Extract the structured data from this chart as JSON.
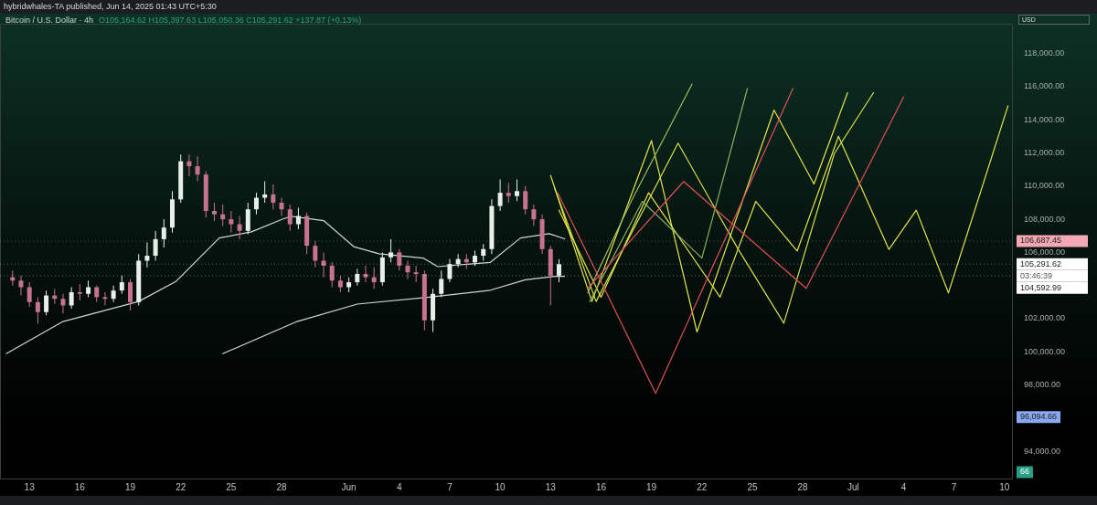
{
  "chart_data": {
    "type": "candlestick",
    "title": "Bitcoin / U.S. Dollar · 4h",
    "subtitle": "hybridwhales-TA published, Jun 14, 2025 01:43 UTC+5:30",
    "annotations": [
      "O105,164.62 H105,397.63 L105,050.36 C105,291.62 +137.87 (+0.13%)",
      "USD",
      "03:46:39",
      "96,094.66",
      "66"
    ],
    "ref_lines": [
      {
        "axis": "y",
        "value": 106687.45,
        "label": "106,687.45",
        "color": "#f4a7b5",
        "line_style": "dotted"
      },
      {
        "axis": "y",
        "value": 105291.62,
        "label": "105,291.62",
        "color": "#ffffff",
        "line_style": "dotted"
      },
      {
        "axis": "y",
        "value": 104592.99,
        "label": "104,592.99",
        "color": "#ffffff",
        "line_style": "dotted"
      }
    ],
    "x": [
      "2025-05-12T00:00",
      "2025-05-12T12:00",
      "2025-05-13T00:00",
      "2025-05-13T12:00",
      "2025-05-14T00:00",
      "2025-05-14T12:00",
      "2025-05-15T00:00",
      "2025-05-15T12:00",
      "2025-05-16T00:00",
      "2025-05-16T12:00",
      "2025-05-17T00:00",
      "2025-05-17T12:00",
      "2025-05-18T00:00",
      "2025-05-18T12:00",
      "2025-05-19T00:00",
      "2025-05-19T12:00",
      "2025-05-20T00:00",
      "2025-05-20T12:00",
      "2025-05-21T00:00",
      "2025-05-21T12:00",
      "2025-05-22T00:00",
      "2025-05-22T12:00",
      "2025-05-23T00:00",
      "2025-05-23T12:00",
      "2025-05-24T00:00",
      "2025-05-24T12:00",
      "2025-05-25T00:00",
      "2025-05-25T12:00",
      "2025-05-26T00:00",
      "2025-05-26T12:00",
      "2025-05-27T00:00",
      "2025-05-27T12:00",
      "2025-05-28T00:00",
      "2025-05-28T12:00",
      "2025-05-29T00:00",
      "2025-05-29T12:00",
      "2025-05-30T00:00",
      "2025-05-30T12:00",
      "2025-05-31T00:00",
      "2025-05-31T12:00",
      "2025-06-01T00:00",
      "2025-06-01T12:00",
      "2025-06-02T00:00",
      "2025-06-02T12:00",
      "2025-06-03T00:00",
      "2025-06-03T12:00",
      "2025-06-04T00:00",
      "2025-06-04T12:00",
      "2025-06-05T00:00",
      "2025-06-05T12:00",
      "2025-06-06T00:00",
      "2025-06-06T12:00",
      "2025-06-07T00:00",
      "2025-06-07T12:00",
      "2025-06-08T00:00",
      "2025-06-08T12:00",
      "2025-06-09T00:00",
      "2025-06-09T12:00",
      "2025-06-10T00:00",
      "2025-06-10T12:00",
      "2025-06-11T00:00",
      "2025-06-11T12:00",
      "2025-06-12T00:00",
      "2025-06-12T12:00",
      "2025-06-13T00:00",
      "2025-06-13T12:00"
    ],
    "ohlc": [
      [
        104500,
        104900,
        104000,
        104300
      ],
      [
        104300,
        104600,
        103400,
        103900
      ],
      [
        103900,
        104200,
        102700,
        103000
      ],
      [
        103000,
        103300,
        101700,
        102400
      ],
      [
        102400,
        103700,
        102200,
        103400
      ],
      [
        103400,
        103800,
        102900,
        103200
      ],
      [
        103200,
        103500,
        102300,
        102800
      ],
      [
        102800,
        103900,
        102600,
        103600
      ],
      [
        103600,
        104100,
        103100,
        103500
      ],
      [
        103500,
        104300,
        103300,
        103900
      ],
      [
        103900,
        104000,
        103000,
        103300
      ],
      [
        103300,
        103600,
        102800,
        103200
      ],
      [
        103200,
        104000,
        103000,
        103700
      ],
      [
        103700,
        104600,
        103500,
        104200
      ],
      [
        104200,
        104400,
        102500,
        103000
      ],
      [
        103000,
        105900,
        102800,
        105500
      ],
      [
        105500,
        106600,
        105100,
        105800
      ],
      [
        105800,
        107300,
        105500,
        106800
      ],
      [
        106800,
        108000,
        106300,
        107500
      ],
      [
        107500,
        109700,
        107200,
        109200
      ],
      [
        109200,
        111900,
        109000,
        111500
      ],
      [
        111500,
        111900,
        110600,
        111200
      ],
      [
        111200,
        111800,
        110300,
        110700
      ],
      [
        110700,
        110900,
        108100,
        108500
      ],
      [
        108500,
        109000,
        107900,
        108300
      ],
      [
        108300,
        108900,
        107600,
        108000
      ],
      [
        108000,
        108500,
        107200,
        107700
      ],
      [
        107700,
        108200,
        106800,
        107300
      ],
      [
        107300,
        109000,
        107100,
        108600
      ],
      [
        108600,
        109600,
        108300,
        109300
      ],
      [
        109300,
        110300,
        109000,
        109500
      ],
      [
        109500,
        110100,
        108600,
        109000
      ],
      [
        109000,
        109300,
        108200,
        108600
      ],
      [
        108600,
        108900,
        107300,
        107700
      ],
      [
        107700,
        108700,
        107400,
        108200
      ],
      [
        108200,
        108400,
        105900,
        106400
      ],
      [
        106400,
        106700,
        105100,
        105500
      ],
      [
        105500,
        106000,
        104500,
        105200
      ],
      [
        105200,
        105400,
        103900,
        104300
      ],
      [
        104300,
        104600,
        103600,
        103900
      ],
      [
        103900,
        104500,
        103600,
        104200
      ],
      [
        104200,
        105000,
        104000,
        104700
      ],
      [
        104700,
        105200,
        104200,
        104500
      ],
      [
        104500,
        105100,
        103800,
        104200
      ],
      [
        104200,
        106000,
        104000,
        105700
      ],
      [
        105700,
        106800,
        105400,
        106000
      ],
      [
        106000,
        106200,
        104900,
        105200
      ],
      [
        105200,
        105500,
        104400,
        104800
      ],
      [
        104800,
        105200,
        104200,
        104700
      ],
      [
        104700,
        104900,
        101300,
        101900
      ],
      [
        101900,
        103800,
        101200,
        103500
      ],
      [
        103500,
        104900,
        103300,
        104400
      ],
      [
        104400,
        105600,
        104200,
        105300
      ],
      [
        105300,
        105900,
        105100,
        105600
      ],
      [
        105600,
        105900,
        105000,
        105400
      ],
      [
        105400,
        106100,
        105200,
        105800
      ],
      [
        105800,
        106500,
        105500,
        106200
      ],
      [
        106200,
        109200,
        105900,
        108800
      ],
      [
        108800,
        110400,
        108500,
        109600
      ],
      [
        109600,
        110200,
        109000,
        109400
      ],
      [
        109400,
        110400,
        109100,
        109700
      ],
      [
        109700,
        110000,
        108300,
        108600
      ],
      [
        108600,
        108900,
        107600,
        108000
      ],
      [
        108000,
        108300,
        105900,
        106200
      ],
      [
        106200,
        106400,
        102800,
        104600
      ],
      [
        104600,
        105600,
        104200,
        105290
      ]
    ],
    "colors": [
      "#c8738d",
      "#c8738d",
      "#c8738d",
      "#c8738d",
      "#e8efe9",
      "#c8738d",
      "#c8738d",
      "#e8efe9",
      "#c8738d",
      "#e8efe9",
      "#c8738d",
      "#c8738d",
      "#e8efe9",
      "#e8efe9",
      "#c8738d",
      "#e8efe9",
      "#e8efe9",
      "#e8efe9",
      "#e8efe9",
      "#e8efe9",
      "#e8efe9",
      "#c8738d",
      "#c8738d",
      "#c8738d",
      "#c8738d",
      "#c8738d",
      "#c8738d",
      "#c8738d",
      "#e8efe9",
      "#e8efe9",
      "#e8efe9",
      "#c8738d",
      "#c8738d",
      "#c8738d",
      "#e8efe9",
      "#c8738d",
      "#c8738d",
      "#c8738d",
      "#c8738d",
      "#c8738d",
      "#e8efe9",
      "#e8efe9",
      "#c8738d",
      "#c8738d",
      "#e8efe9",
      "#e8efe9",
      "#c8738d",
      "#c8738d",
      "#c8738d",
      "#c8738d",
      "#e8efe9",
      "#e8efe9",
      "#e8efe9",
      "#e8efe9",
      "#c8738d",
      "#e8efe9",
      "#e8efe9",
      "#e8efe9",
      "#e8efe9",
      "#c8738d",
      "#e8efe9",
      "#c8738d",
      "#c8738d",
      "#c8738d",
      "#c8738d",
      "#e8efe9"
    ],
    "series": [
      {
        "type": "line",
        "color": "#cfd8d2",
        "x": [
          "2025-05-11T15:00",
          "2025-05-15T00:00",
          "2025-05-19T12:00",
          "2025-05-21T17:00",
          "2025-05-24T07:00",
          "2025-05-26T05:00",
          "2025-05-28T02:00",
          "2025-05-28T14:00",
          "2025-05-30T12:00",
          "2025-06-01T07:00",
          "2025-06-02T19:00",
          "2025-06-05T10:00",
          "2025-06-06T07:00",
          "2025-06-09T10:00",
          "2025-06-11T05:00",
          "2025-06-12T22:00",
          "2025-06-13T20:00"
        ],
        "values": [
          99890,
          101830,
          103040,
          104240,
          106870,
          107240,
          108020,
          108180,
          107920,
          106350,
          105920,
          105660,
          105140,
          105400,
          106870,
          107130,
          106820
        ]
      },
      {
        "type": "line",
        "color": "#cfd8d2",
        "x": [
          "2025-05-24T12:00",
          "2025-05-28T22:00",
          "2025-06-01T12:00",
          "2025-06-05T19:00",
          "2025-06-09T10:00",
          "2025-06-11T12:00",
          "2025-06-13T06:00",
          "2025-06-13T20:00"
        ],
        "values": [
          99890,
          101830,
          102880,
          103300,
          103720,
          104350,
          104560,
          104560
        ]
      },
      {
        "type": "line",
        "color": "#e0505a",
        "x": [
          "2025-06-13T10:00",
          "2025-06-19T06:00",
          "2025-06-27T10:00"
        ],
        "values": [
          109600,
          97500,
          115900
        ]
      },
      {
        "type": "line",
        "color": "#e0505a",
        "x": [
          "2025-06-15T05:00",
          "2025-06-20T22:00",
          "2025-06-28T05:00",
          "2025-07-04T00:00"
        ],
        "values": [
          103830,
          110280,
          103830,
          115380
        ]
      },
      {
        "type": "line",
        "color": "#9cc060",
        "x": [
          "2025-06-15T05:00",
          "2025-06-17T19:00",
          "2025-06-21T10:00"
        ],
        "values": [
          103560,
          109080,
          116160
        ]
      },
      {
        "type": "line",
        "color": "#86b060",
        "x": [
          "2025-06-15T08:00",
          "2025-06-18T11:00",
          "2025-06-22T00:00",
          "2025-06-24T17:00"
        ],
        "values": [
          103040,
          109080,
          105660,
          115900
        ]
      },
      {
        "type": "line",
        "color": "#e6e64a",
        "x": [
          "2025-06-13T00:00",
          "2025-06-15T11:00",
          "2025-06-19T00:00",
          "2025-06-21T17:00",
          "2025-06-26T07:00",
          "2025-06-28T16:00",
          "2025-06-30T16:00"
        ],
        "values": [
          110650,
          103040,
          112750,
          101200,
          114590,
          110130,
          115640
        ]
      },
      {
        "type": "line",
        "color": "#d8e24c",
        "x": [
          "2025-06-13T06:00",
          "2025-06-15T17:00",
          "2025-06-20T14:00",
          "2025-06-24T04:00",
          "2025-06-26T21:00",
          "2025-06-29T21:00",
          "2025-07-02T05:00"
        ],
        "values": [
          109860,
          103040,
          112590,
          106180,
          101730,
          111960,
          115640
        ]
      },
      {
        "type": "line",
        "color": "#e6e64a",
        "x": [
          "2025-06-13T12:00",
          "2025-06-16T00:00",
          "2025-06-18T20:00",
          "2025-06-23T02:00",
          "2025-06-25T05:00",
          "2025-06-27T16:00",
          "2025-06-30T03:00",
          "2025-07-03T03:00",
          "2025-07-04T18:00",
          "2025-07-06T16:00",
          "2025-07-10T05:00"
        ],
        "values": [
          108550,
          103300,
          109600,
          103300,
          109080,
          106080,
          113010,
          106180,
          108550,
          103560,
          114850
        ]
      }
    ],
    "xlim": [
      "2025-05-11T06:00",
      "2025-07-10T12:00"
    ],
    "xticks": [
      {
        "value": "2025-05-13",
        "label": "13"
      },
      {
        "value": "2025-05-16",
        "label": "16"
      },
      {
        "value": "2025-05-19",
        "label": "19"
      },
      {
        "value": "2025-05-22",
        "label": "22"
      },
      {
        "value": "2025-05-25",
        "label": "25"
      },
      {
        "value": "2025-05-28",
        "label": "28"
      },
      {
        "value": "2025-06-01",
        "label": "Jun"
      },
      {
        "value": "2025-06-04",
        "label": "4"
      },
      {
        "value": "2025-06-07",
        "label": "7"
      },
      {
        "value": "2025-06-10",
        "label": "10"
      },
      {
        "value": "2025-06-13",
        "label": "13"
      },
      {
        "value": "2025-06-16",
        "label": "16"
      },
      {
        "value": "2025-06-19",
        "label": "19"
      },
      {
        "value": "2025-06-22",
        "label": "22"
      },
      {
        "value": "2025-06-25",
        "label": "25"
      },
      {
        "value": "2025-06-28",
        "label": "28"
      },
      {
        "value": "2025-07-01",
        "label": "Jul"
      },
      {
        "value": "2025-07-04",
        "label": "4"
      },
      {
        "value": "2025-07-07",
        "label": "7"
      },
      {
        "value": "2025-07-10",
        "label": "10"
      }
    ],
    "ylim": [
      92300,
      119800
    ],
    "yticks": [
      {
        "value": 94000,
        "label": "94,000.00"
      },
      {
        "value": 98000,
        "label": "98,000.00"
      },
      {
        "value": 100000,
        "label": "100,000.00"
      },
      {
        "value": 102000,
        "label": "102,000.00"
      },
      {
        "value": 106000,
        "label": "106,000.00"
      },
      {
        "value": 108000,
        "label": "108,000.00"
      },
      {
        "value": 110000,
        "label": "110,000.00"
      },
      {
        "value": 112000,
        "label": "112,000.00"
      },
      {
        "value": 114000,
        "label": "114,000.00"
      },
      {
        "value": 116000,
        "label": "116,000.00"
      },
      {
        "value": 118000,
        "label": "118,000.00"
      }
    ]
  }
}
